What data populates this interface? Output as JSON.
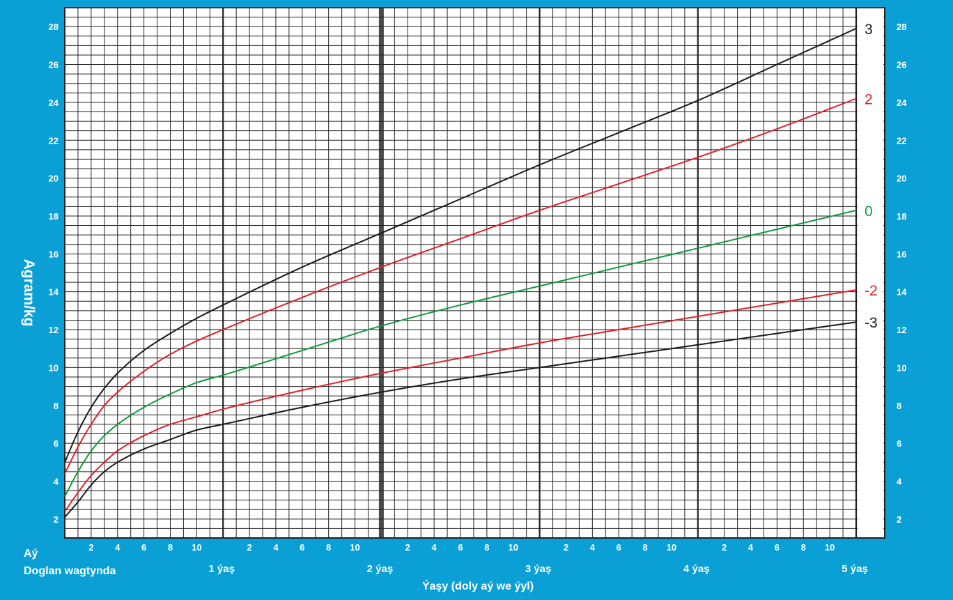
{
  "chart_data": {
    "type": "line",
    "ylabel": "Agram/kg",
    "xlabel": "Ýaşy (doly aý we ýyl)",
    "month_row_label": "Aý",
    "birth_label": "Doglan wagtynda",
    "year_labels": [
      "1 ýaş",
      "2 ýaş",
      "3 ýaş",
      "4 ýaş",
      "5 ýaş"
    ],
    "month_ticks": [
      "2",
      "4",
      "6",
      "8",
      "10"
    ],
    "xlim": [
      0,
      60
    ],
    "ylim": [
      1,
      29
    ],
    "y_ticks": [
      2,
      4,
      6,
      8,
      10,
      12,
      14,
      16,
      18,
      20,
      22,
      24,
      26,
      28
    ],
    "grid": true,
    "series": [
      {
        "name": "3",
        "color": "#1a1a1a",
        "x": [
          0,
          1,
          2,
          3,
          4,
          6,
          8,
          10,
          12,
          18,
          24,
          30,
          36,
          42,
          48,
          54,
          60
        ],
        "y": [
          5.0,
          6.6,
          7.9,
          8.9,
          9.7,
          10.9,
          11.8,
          12.6,
          13.3,
          15.3,
          17.1,
          18.9,
          20.7,
          22.4,
          24.1,
          26.0,
          27.9
        ]
      },
      {
        "name": "2",
        "color": "#e0202a",
        "x": [
          0,
          1,
          2,
          3,
          4,
          6,
          8,
          10,
          12,
          18,
          24,
          30,
          36,
          42,
          48,
          54,
          60
        ],
        "y": [
          4.4,
          5.8,
          7.0,
          8.0,
          8.7,
          9.8,
          10.7,
          11.4,
          12.0,
          13.7,
          15.3,
          16.8,
          18.3,
          19.7,
          21.1,
          22.6,
          24.2
        ]
      },
      {
        "name": "0",
        "color": "#109a3c",
        "x": [
          0,
          1,
          2,
          3,
          4,
          6,
          8,
          10,
          12,
          18,
          24,
          30,
          36,
          42,
          48,
          54,
          60
        ],
        "y": [
          3.2,
          4.5,
          5.6,
          6.4,
          7.0,
          7.9,
          8.6,
          9.2,
          9.6,
          10.9,
          12.2,
          13.3,
          14.3,
          15.3,
          16.3,
          17.3,
          18.3
        ]
      },
      {
        "name": "-2",
        "color": "#e0202a",
        "x": [
          0,
          1,
          2,
          3,
          4,
          6,
          8,
          10,
          12,
          18,
          24,
          30,
          36,
          42,
          48,
          54,
          60
        ],
        "y": [
          2.4,
          3.4,
          4.3,
          5.0,
          5.6,
          6.4,
          7.0,
          7.4,
          7.8,
          8.8,
          9.7,
          10.5,
          11.3,
          12.0,
          12.7,
          13.4,
          14.1
        ]
      },
      {
        "name": "-3",
        "color": "#1a1a1a",
        "x": [
          0,
          1,
          2,
          3,
          4,
          6,
          8,
          10,
          12,
          18,
          24,
          30,
          36,
          42,
          48,
          54,
          60
        ],
        "y": [
          2.1,
          2.9,
          3.8,
          4.5,
          5.0,
          5.7,
          6.2,
          6.7,
          7.0,
          7.9,
          8.7,
          9.4,
          10.0,
          10.6,
          11.2,
          11.8,
          12.4
        ]
      }
    ]
  }
}
